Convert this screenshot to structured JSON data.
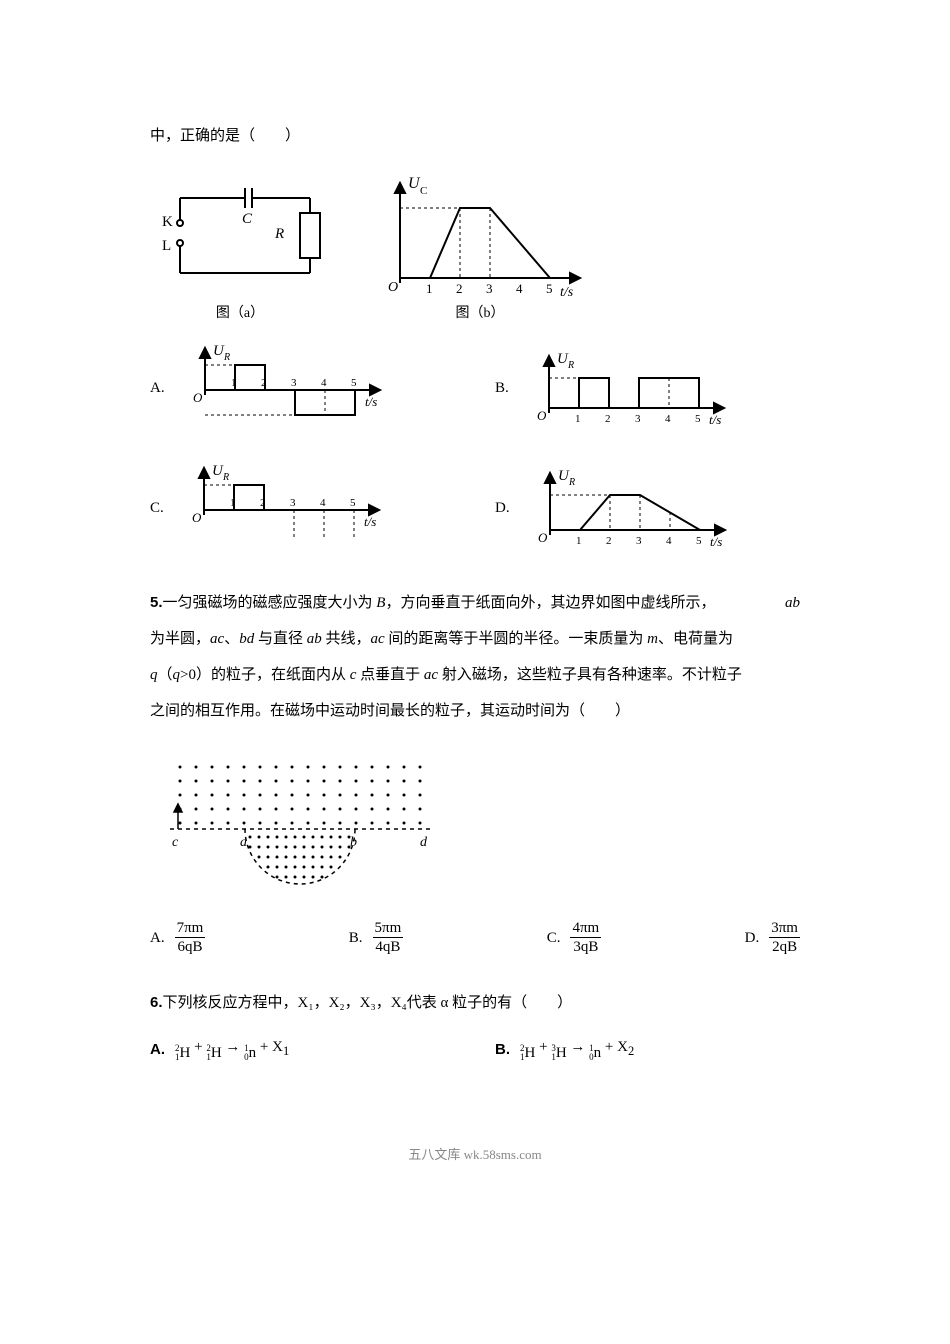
{
  "q4": {
    "stem_tail": "中，正确的是（　　）",
    "fig_a_caption": "图（a）",
    "fig_b_caption": "图（b）",
    "circuit": {
      "K": "K",
      "L": "L",
      "C": "C",
      "R": "R"
    },
    "graph_b": {
      "y_label": "U",
      "y_sub": "C",
      "x_label": "t/s",
      "x_ticks": [
        "1",
        "2",
        "3",
        "4",
        "5"
      ],
      "stroke": "#000000",
      "axis_width": 1.5
    },
    "options": {
      "A": {
        "letter": "A.",
        "y_label": "U",
        "y_sub": "R",
        "x_label": "t/s",
        "x_ticks": [
          "1",
          "2",
          "3",
          "4",
          "5"
        ]
      },
      "B": {
        "letter": "B.",
        "y_label": "U",
        "y_sub": "R",
        "x_label": "t/s",
        "x_ticks": [
          "1",
          "2",
          "3",
          "4",
          "5"
        ]
      },
      "C": {
        "letter": "C.",
        "y_label": "U",
        "y_sub": "R",
        "x_label": "t/s",
        "x_ticks": [
          "1",
          "2",
          "3",
          "4",
          "5"
        ]
      },
      "D": {
        "letter": "D.",
        "y_label": "U",
        "y_sub": "R",
        "x_label": "t/s",
        "x_ticks": [
          "1",
          "2",
          "3",
          "4",
          "5"
        ]
      }
    }
  },
  "q5": {
    "number": "5.",
    "right_label": "ab",
    "stem": "一匀强磁场的磁感应强度大小为 B，方向垂直于纸面向外，其边界如图中虚线所示，",
    "stem2": "为半圆，ac、bd 与直径 ab 共线，ac 间的距离等于半圆的半径。一束质量为 m、电荷量为",
    "stem3": "q（q>0）的粒子，在纸面内从 c 点垂直于 ac 射入磁场，这些粒子具有各种速率。不计粒子",
    "stem4": "之间的相互作用。在磁场中运动时间最长的粒子，其运动时间为（　　）",
    "diagram": {
      "c": "c",
      "a": "a",
      "b": "b",
      "d": "d"
    },
    "options": {
      "A": {
        "letter": "A.",
        "num": "7πm",
        "den": "6qB"
      },
      "B": {
        "letter": "B.",
        "num": "5πm",
        "den": "4qB"
      },
      "C": {
        "letter": "C.",
        "num": "4πm",
        "den": "3qB"
      },
      "D": {
        "letter": "D.",
        "num": "3πm",
        "den": "2qB"
      }
    }
  },
  "q6": {
    "number": "6.",
    "stem": "下列核反应方程中，X₁，X₂，X₃，X₄代表 α 粒子的有（　　）",
    "options": {
      "A": {
        "letter": "A."
      },
      "B": {
        "letter": "B."
      }
    }
  },
  "footer": "五八文库 wk.58sms.com"
}
